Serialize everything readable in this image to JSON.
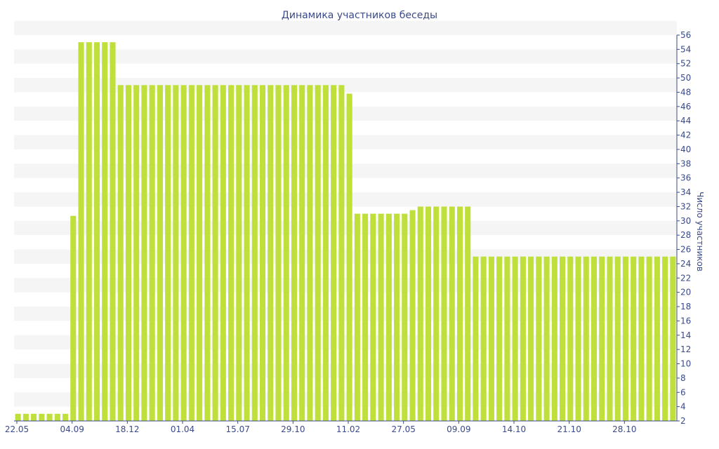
{
  "chart_data": {
    "type": "bar",
    "title": "Динамика участников беседы",
    "xlabel": "",
    "ylabel": "Число участников",
    "ylim": [
      2,
      56
    ],
    "yticks": [
      2,
      4,
      6,
      8,
      10,
      12,
      14,
      16,
      18,
      20,
      22,
      24,
      26,
      28,
      30,
      32,
      34,
      36,
      38,
      40,
      42,
      44,
      46,
      48,
      50,
      52,
      54,
      56
    ],
    "grid": "horizontal bands",
    "x_tick_labels": [
      {
        "label": "22.05",
        "index": 0
      },
      {
        "label": "04.09",
        "index": 7
      },
      {
        "label": "18.12",
        "index": 14
      },
      {
        "label": "01.04",
        "index": 21
      },
      {
        "label": "15.07",
        "index": 28
      },
      {
        "label": "29.10",
        "index": 35
      },
      {
        "label": "11.02",
        "index": 42
      },
      {
        "label": "27.05",
        "index": 49
      },
      {
        "label": "09.09",
        "index": 56
      },
      {
        "label": "14.10",
        "index": 63
      },
      {
        "label": "21.10",
        "index": 70
      },
      {
        "label": "28.10",
        "index": 77
      }
    ],
    "series": [
      {
        "color": "#bfdf3a",
        "values": [
          3,
          3,
          3,
          3,
          3,
          3,
          3,
          30.7,
          55,
          55,
          55,
          55,
          55,
          49,
          49,
          49,
          49,
          49,
          49,
          49,
          49,
          49,
          49,
          49,
          49,
          49,
          49,
          49,
          49,
          49,
          49,
          49,
          49,
          49,
          49,
          49,
          49,
          49,
          49,
          49,
          49,
          49,
          47.8,
          31,
          31,
          31,
          31,
          31,
          31,
          31,
          31.5,
          32,
          32,
          32,
          32,
          32,
          32,
          32,
          25,
          25,
          25,
          25,
          25,
          25,
          25,
          25,
          25,
          25,
          25,
          25,
          25,
          25,
          25,
          25,
          25,
          25,
          25,
          25,
          25,
          25,
          25,
          25,
          25,
          25
        ]
      }
    ]
  }
}
